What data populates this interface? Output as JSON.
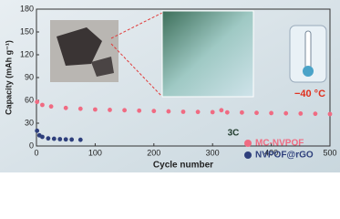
{
  "chart_data": {
    "type": "scatter",
    "xlabel": "Cycle number",
    "ylabel": "Capacity (mAh g⁻¹)",
    "xlim": [
      0,
      500
    ],
    "xticks": [
      0,
      100,
      200,
      300,
      400,
      500
    ],
    "ylim": [
      0,
      180
    ],
    "yticks": [
      0,
      30,
      60,
      90,
      120,
      150,
      180
    ],
    "annotations": [
      "3C",
      "−40 °C"
    ],
    "legend": "lower right",
    "series": [
      {
        "name": "MC-NVPOF",
        "color": "#f06b82",
        "x": [
          1,
          10,
          25,
          50,
          75,
          100,
          125,
          150,
          175,
          200,
          225,
          250,
          275,
          300,
          315,
          325,
          350,
          375,
          400,
          425,
          450,
          475,
          500
        ],
        "values": [
          58,
          54,
          52,
          50,
          49,
          48,
          47.5,
          47,
          46.5,
          46,
          45.5,
          45,
          44.8,
          44.5,
          47,
          44.2,
          44,
          43.6,
          43.3,
          43,
          42.7,
          42.4,
          42
        ]
      },
      {
        "name": "NVPOF@rGO",
        "color": "#2e3f7c",
        "x": [
          1,
          5,
          10,
          20,
          30,
          40,
          50,
          60,
          75
        ],
        "values": [
          20,
          14,
          12,
          10,
          9.5,
          9,
          8.7,
          8.5,
          8.2
        ]
      }
    ]
  }
}
